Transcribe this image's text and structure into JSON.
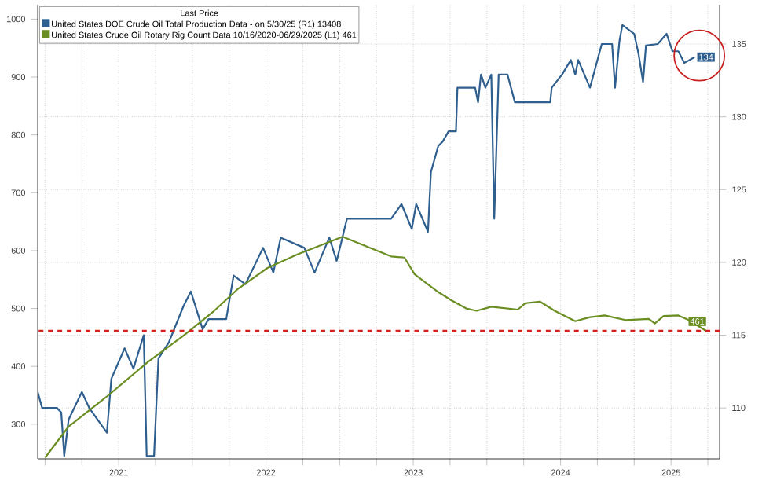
{
  "chart_data": {
    "type": "line",
    "legend_title": "Last Price",
    "xlim": [
      "2020-12-13",
      "2025-07-31"
    ],
    "xticks": [
      {
        "value": "2021-01-01",
        "label": null
      },
      {
        "value": "2021-04-01",
        "label": null
      },
      {
        "value": "2021-07-01",
        "label": "2021"
      },
      {
        "value": "2021-10-01",
        "label": null
      },
      {
        "value": "2022-01-01",
        "label": null
      },
      {
        "value": "2022-04-01",
        "label": null
      },
      {
        "value": "2022-07-01",
        "label": "2022"
      },
      {
        "value": "2022-10-01",
        "label": null
      },
      {
        "value": "2023-01-01",
        "label": null
      },
      {
        "value": "2023-04-01",
        "label": null
      },
      {
        "value": "2023-07-01",
        "label": "2023"
      },
      {
        "value": "2023-10-01",
        "label": null
      },
      {
        "value": "2024-01-01",
        "label": null
      },
      {
        "value": "2024-04-01",
        "label": null
      },
      {
        "value": "2024-07-01",
        "label": "2024"
      },
      {
        "value": "2024-10-01",
        "label": null
      },
      {
        "value": "2025-01-01",
        "label": null
      },
      {
        "value": "2025-04-01",
        "label": "2025"
      },
      {
        "value": "2025-07-01",
        "label": null
      }
    ],
    "ylim": [
      240,
      1025
    ],
    "yticks": [
      300,
      400,
      500,
      600,
      700,
      800,
      900,
      1000
    ],
    "y2lim": [
      106.5,
      137.7
    ],
    "y2ticks": [
      110,
      115,
      120,
      125,
      130,
      135
    ],
    "grid": true,
    "legend": "top left",
    "ref_lines": [
      {
        "axis": "y",
        "value": 461,
        "color": "#d42020",
        "line_style": "dashed"
      }
    ],
    "series": [
      {
        "name": "United States DOE Crude Oil Total Production Data -  on 5/30/25  (R1)  13408",
        "color": "#2e5f8f",
        "axis": "y2",
        "x": [
          "2020-12-13",
          "2020-12-24",
          "2021-01-29",
          "2021-02-09",
          "2021-02-19",
          "2021-02-27",
          "2021-04-02",
          "2021-04-20",
          "2021-06-03",
          "2021-06-14",
          "2021-07-16",
          "2021-08-07",
          "2021-09-02",
          "2021-09-09",
          "2021-09-27",
          "2021-10-08",
          "2021-11-03",
          "2021-12-09",
          "2021-12-27",
          "2022-01-26",
          "2022-02-10",
          "2022-03-26",
          "2022-04-13",
          "2022-05-12",
          "2022-06-25",
          "2022-07-20",
          "2022-08-08",
          "2022-10-05",
          "2022-10-31",
          "2022-12-06",
          "2022-12-24",
          "2023-01-19",
          "2023-05-08",
          "2023-06-03",
          "2023-06-28",
          "2023-07-09",
          "2023-08-08",
          "2023-08-15",
          "2023-09-02",
          "2023-09-13",
          "2023-09-27",
          "2023-10-15",
          "2023-10-19",
          "2023-12-02",
          "2023-12-09",
          "2023-12-16",
          "2023-12-27",
          "2024-01-11",
          "2024-01-19",
          "2024-01-30",
          "2024-02-21",
          "2024-03-10",
          "2024-06-06",
          "2024-06-10",
          "2024-07-05",
          "2024-07-27",
          "2024-08-07",
          "2024-08-15",
          "2024-09-13",
          "2024-10-12",
          "2024-11-06",
          "2024-11-14",
          "2024-11-25",
          "2024-12-02",
          "2025-01-01",
          "2025-01-12",
          "2025-01-23",
          "2025-01-31",
          "2025-03-01",
          "2025-03-23",
          "2025-04-05",
          "2025-04-20",
          "2025-05-05",
          "2025-05-30"
        ],
        "values": [
          111.1,
          110.0,
          110.0,
          109.7,
          106.7,
          109.2,
          111.1,
          110.0,
          108.3,
          112.0,
          114.1,
          112.7,
          115.0,
          106.7,
          106.7,
          113.4,
          114.5,
          117.0,
          118.0,
          115.4,
          116.1,
          116.1,
          119.1,
          118.5,
          121.0,
          119.3,
          121.7,
          121.0,
          119.3,
          121.7,
          120.1,
          123.0,
          123.0,
          124.0,
          122.3,
          124.0,
          122.1,
          126.2,
          128.0,
          128.3,
          129.0,
          129.0,
          132.0,
          132.0,
          131.0,
          132.9,
          132.0,
          132.9,
          123.0,
          132.9,
          132.9,
          131.0,
          131.0,
          132.0,
          132.9,
          133.9,
          132.9,
          133.9,
          132.0,
          135.0,
          135.0,
          132.0,
          135.2,
          136.3,
          135.7,
          134.3,
          132.4,
          134.9,
          135.0,
          135.7,
          134.5,
          134.5,
          133.7,
          134.1
        ],
        "value_labels": [
          null,
          null,
          null,
          null,
          null,
          null,
          null,
          null,
          null,
          null,
          null,
          null,
          null,
          null,
          null,
          null,
          null,
          null,
          null,
          null,
          null,
          null,
          null,
          null,
          null,
          null,
          null,
          null,
          null,
          null,
          null,
          null,
          null,
          null,
          null,
          null,
          null,
          null,
          null,
          null,
          null,
          null,
          null,
          null,
          null,
          null,
          null,
          null,
          null,
          null,
          null,
          null,
          null,
          null,
          null,
          null,
          null,
          null,
          null,
          null,
          null,
          null,
          null,
          null,
          null,
          null,
          null,
          null,
          null,
          null,
          null,
          null,
          null,
          "134"
        ]
      },
      {
        "name": "United States Crude Oil Rotary Rig Count Data 10/16/2020-06/29/2025  (L1)  461",
        "color": "#6b8e23",
        "axis": "y",
        "x": [
          "2021-01-01",
          "2021-03-01",
          "2021-06-07",
          "2021-09-13",
          "2021-12-09",
          "2022-02-21",
          "2022-04-23",
          "2022-07-05",
          "2022-09-16",
          "2023-01-08",
          "2023-05-08",
          "2023-06-10",
          "2023-07-05",
          "2023-08-30",
          "2023-10-05",
          "2023-11-10",
          "2023-12-06",
          "2024-01-11",
          "2024-03-17",
          "2024-04-04",
          "2024-05-11",
          "2024-06-17",
          "2024-08-07",
          "2024-09-13",
          "2024-10-19",
          "2024-12-09",
          "2025-02-06",
          "2025-02-21",
          "2025-03-15",
          "2025-04-20",
          "2025-05-16",
          "2025-06-29"
        ],
        "values": [
          242,
          296,
          350,
          408,
          453,
          494,
          534,
          570,
          593,
          624,
          590,
          588,
          559,
          530,
          514,
          500,
          496,
          503,
          498,
          509,
          512,
          496,
          478,
          485,
          488,
          480,
          482,
          474,
          487,
          488,
          480,
          461
        ],
        "value_labels": [
          null,
          null,
          null,
          null,
          null,
          null,
          null,
          null,
          null,
          null,
          null,
          null,
          null,
          null,
          null,
          null,
          null,
          null,
          null,
          null,
          null,
          null,
          null,
          null,
          null,
          null,
          null,
          null,
          null,
          null,
          null,
          "461"
        ]
      }
    ]
  }
}
